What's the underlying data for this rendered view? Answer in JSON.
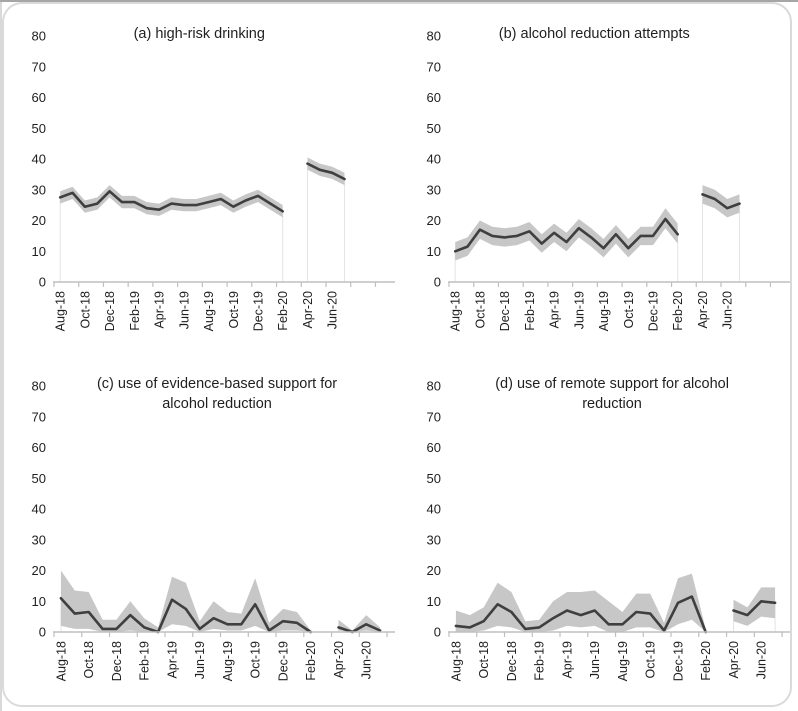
{
  "window": {
    "background": "#ffffff",
    "card_border": "#dadada",
    "top_edge": "#a6a6a6",
    "left_edge": "#d9d9d9"
  },
  "theme": {
    "line": "#3f3f3f",
    "band": "#c7c7c7",
    "axis": "#bfbfbf",
    "dropline": "#e4e4e4",
    "text": "#1f1f1f"
  },
  "months": [
    "Aug-18",
    "Sep-18",
    "Oct-18",
    "Nov-18",
    "Dec-18",
    "Jan-19",
    "Feb-19",
    "Mar-19",
    "Apr-19",
    "May-19",
    "Jun-19",
    "Jul-19",
    "Aug-19",
    "Sep-19",
    "Oct-19",
    "Nov-19",
    "Dec-19",
    "Jan-20",
    "Feb-20",
    "Mar-20",
    "Apr-20",
    "May-20",
    "Jun-20",
    "Jul-20"
  ],
  "x_axis_labels_shown": [
    "Aug-18",
    "Oct-18",
    "Dec-18",
    "Feb-19",
    "Apr-19",
    "Jun-19",
    "Aug-19",
    "Oct-19",
    "Dec-19",
    "Feb-20",
    "Apr-20",
    "Jun-20"
  ],
  "chart_data": [
    {
      "id": "a",
      "type": "line",
      "title": "(a) high-risk drinking",
      "title_lines": [
        "(a) high-risk drinking"
      ],
      "xlabel": "",
      "ylabel": "",
      "ylim": [
        0,
        80
      ],
      "ytick_step": 10,
      "yticks": [
        0,
        10,
        20,
        30,
        40,
        50,
        60,
        70,
        80
      ],
      "grid": false,
      "legend": "none",
      "gap_months": [
        "Mar-20"
      ],
      "right_pad_months": 3,
      "x_label_every": 2,
      "series": [
        {
          "name": "central estimate",
          "values": [
            27.5,
            29,
            24.5,
            25.5,
            29.5,
            26,
            26,
            24,
            23.5,
            25.5,
            25,
            25,
            26,
            27,
            24.5,
            26.5,
            28,
            25.5,
            23,
            null,
            38.5,
            36.5,
            35.5,
            33.5
          ]
        },
        {
          "name": "upper 95% CI",
          "values": [
            29.5,
            31,
            26.5,
            27.5,
            31.5,
            28,
            28,
            26,
            25.5,
            27.5,
            27,
            27,
            28,
            29,
            26.5,
            28.5,
            30,
            27.5,
            25,
            null,
            40.5,
            38.5,
            37.5,
            35.5
          ]
        },
        {
          "name": "lower 95% CI",
          "values": [
            25.5,
            27,
            22.5,
            23.5,
            27.5,
            24,
            24,
            22,
            21.5,
            23.5,
            23,
            23,
            24,
            25,
            22.5,
            24.5,
            26,
            23.5,
            21,
            null,
            36.5,
            34.5,
            33.5,
            31.5
          ]
        }
      ]
    },
    {
      "id": "b",
      "type": "line",
      "title": "(b) alcohol reduction attempts",
      "title_lines": [
        "(b) alcohol reduction attempts"
      ],
      "xlabel": "",
      "ylabel": "",
      "ylim": [
        0,
        80
      ],
      "ytick_step": 10,
      "yticks": [
        0,
        10,
        20,
        30,
        40,
        50,
        60,
        70,
        80
      ],
      "grid": false,
      "legend": "none",
      "gap_months": [
        "Mar-20"
      ],
      "right_pad_months": 3,
      "x_label_every": 2,
      "series": [
        {
          "name": "central estimate",
          "values": [
            10,
            11.5,
            17,
            15,
            14.5,
            15,
            16.5,
            12.5,
            16,
            13,
            17.5,
            14.5,
            11,
            15.5,
            11,
            15,
            15,
            20.5,
            15.5,
            null,
            28.5,
            27,
            24,
            25.5
          ]
        },
        {
          "name": "upper 95% CI",
          "values": [
            13,
            14.5,
            20,
            18,
            17.5,
            18,
            19.5,
            15.5,
            19,
            16,
            20.5,
            17.5,
            14,
            18.5,
            14,
            18,
            18,
            24,
            19,
            null,
            31.5,
            30,
            27,
            28.5
          ]
        },
        {
          "name": "lower 95% CI",
          "values": [
            7,
            8.5,
            14,
            12,
            11.5,
            12,
            13.5,
            9.5,
            13,
            10,
            14.5,
            11.5,
            8,
            12.5,
            8,
            12,
            12,
            17.5,
            12.5,
            null,
            25.5,
            24,
            21,
            22.5
          ]
        }
      ]
    },
    {
      "id": "c",
      "type": "line",
      "title": "(c) use of evidence-based support for alcohol reduction",
      "title_lines": [
        "(c) use of evidence-based support for",
        "alcohol reduction"
      ],
      "xlabel": "",
      "ylabel": "",
      "ylim": [
        0,
        80
      ],
      "ytick_step": 10,
      "yticks": [
        0,
        10,
        20,
        30,
        40,
        50,
        60,
        70,
        80
      ],
      "grid": false,
      "legend": "none",
      "gap_months": [
        "Mar-20"
      ],
      "right_pad_months": 0,
      "x_label_every": 2,
      "series": [
        {
          "name": "central estimate",
          "values": [
            11,
            6,
            6.5,
            1,
            1,
            5.5,
            1.5,
            0,
            10.5,
            7.5,
            1,
            4.5,
            2.5,
            2.5,
            9,
            0.5,
            3.5,
            3,
            0,
            null,
            1.5,
            0,
            2.5,
            0.5
          ]
        },
        {
          "name": "upper 95% CI",
          "values": [
            20,
            13.5,
            13,
            4,
            4,
            10,
            4.5,
            1.5,
            18,
            16,
            3.5,
            10,
            6.5,
            6,
            17.5,
            3,
            7.5,
            6.5,
            0.5,
            null,
            4,
            0.5,
            5.5,
            1.5
          ]
        },
        {
          "name": "lower 95% CI",
          "values": [
            2,
            1,
            1,
            0,
            0,
            0.5,
            0,
            0,
            2.5,
            2,
            0,
            1,
            0.5,
            0.5,
            2,
            0,
            0.5,
            0.5,
            0,
            null,
            0.5,
            0,
            0.5,
            0
          ]
        }
      ]
    },
    {
      "id": "d",
      "type": "line",
      "title": "(d) use of remote support for alcohol reduction",
      "title_lines": [
        "(d) use of remote support for alcohol",
        "reduction"
      ],
      "xlabel": "",
      "ylabel": "",
      "ylim": [
        0,
        80
      ],
      "ytick_step": 10,
      "yticks": [
        0,
        10,
        20,
        30,
        40,
        50,
        60,
        70,
        80
      ],
      "grid": false,
      "legend": "none",
      "gap_months": [
        "Mar-20"
      ],
      "right_pad_months": 0,
      "x_label_every": 2,
      "series": [
        {
          "name": "central estimate",
          "values": [
            2,
            1.5,
            3.5,
            9,
            6.5,
            1,
            1.5,
            4.5,
            7,
            5.5,
            7,
            2.5,
            2.5,
            6.5,
            6,
            0.5,
            9.5,
            11.5,
            0,
            null,
            7,
            5.5,
            10,
            9.5
          ]
        },
        {
          "name": "upper 95% CI",
          "values": [
            7,
            5.5,
            8,
            16,
            13,
            3.5,
            4,
            10,
            13,
            13,
            13.5,
            10,
            6.5,
            12.5,
            12.5,
            3,
            17.5,
            19,
            1,
            null,
            10.5,
            8,
            14.5,
            14.5
          ]
        },
        {
          "name": "lower 95% CI",
          "values": [
            0,
            0,
            0.5,
            2,
            1.5,
            0,
            0,
            0.5,
            2,
            1.5,
            2,
            0,
            0,
            1.5,
            1.5,
            0,
            2.5,
            4,
            0,
            null,
            3.5,
            2,
            5,
            4.5
          ]
        }
      ]
    }
  ]
}
